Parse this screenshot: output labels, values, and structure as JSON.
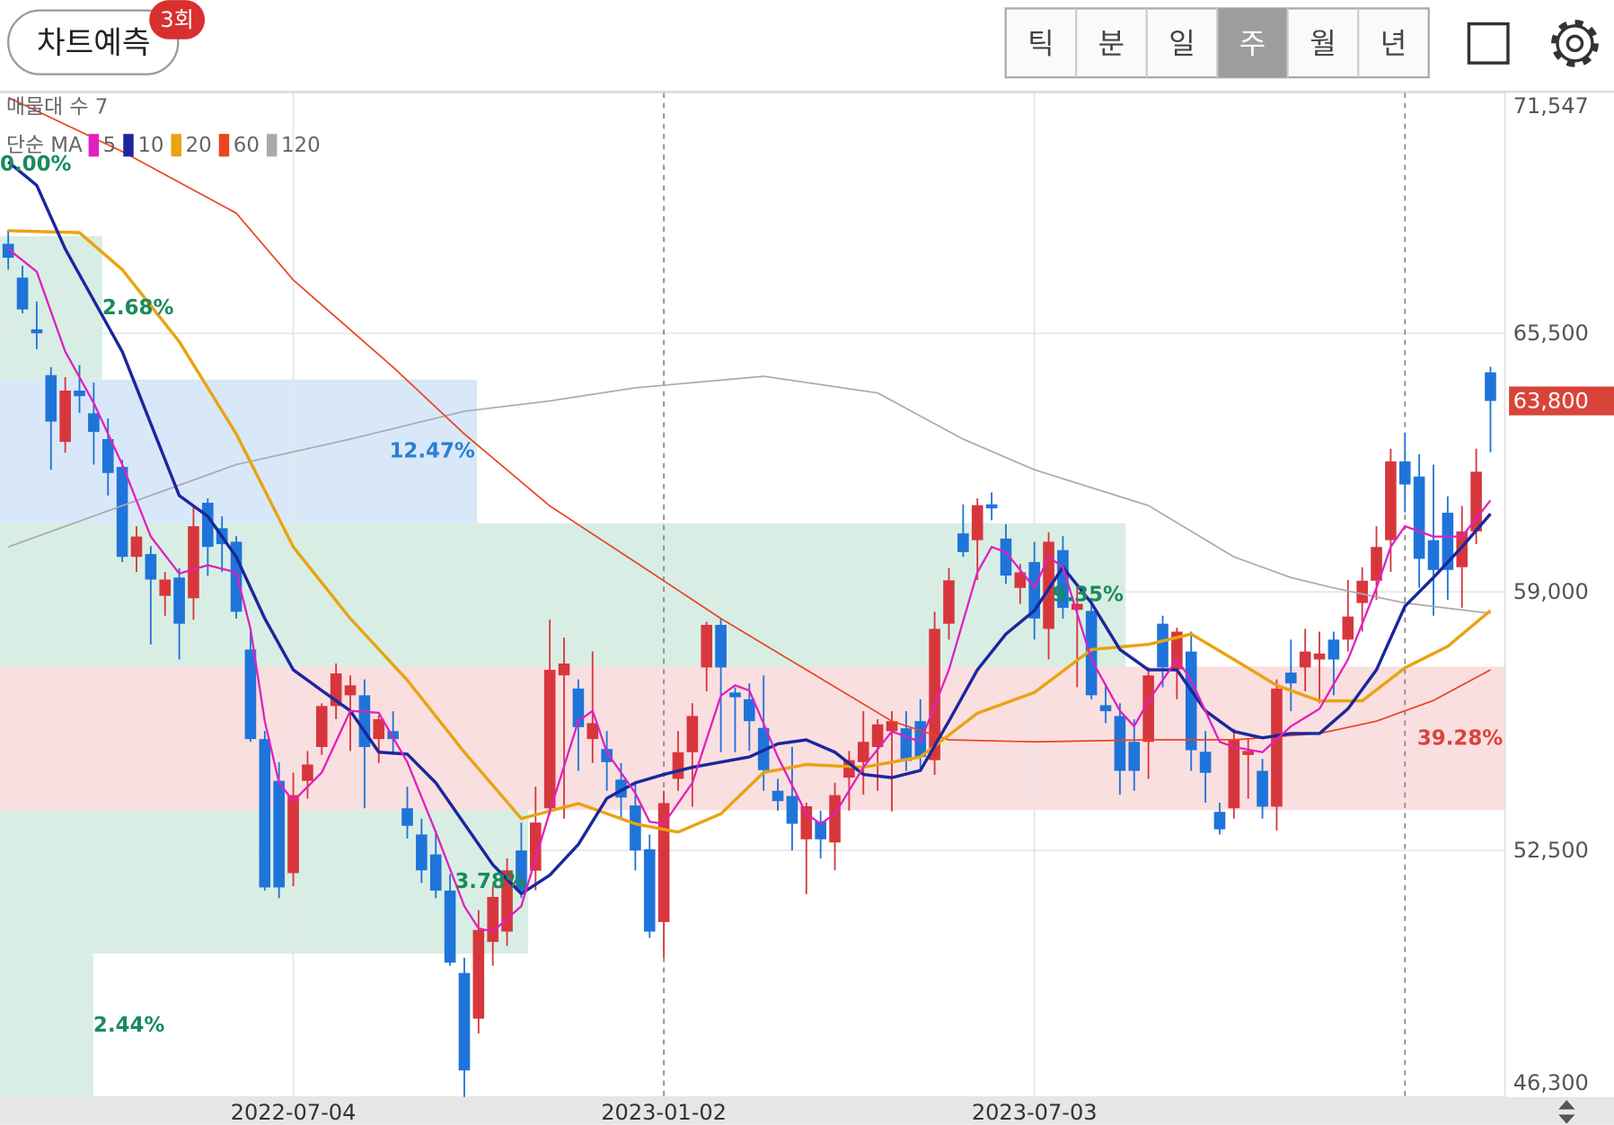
{
  "header": {
    "button": "차트예측",
    "badge": "3회",
    "tabs": [
      "틱",
      "분",
      "일",
      "주",
      "월",
      "년"
    ],
    "selected_tab": 3
  },
  "chart_data": {
    "type": "candlestick",
    "categories": [
      null,
      null,
      null,
      null,
      null,
      null,
      null,
      null,
      null,
      null,
      null,
      null,
      null,
      null,
      null,
      null,
      null,
      null,
      null,
      null,
      "2022-07-04",
      null,
      null,
      null,
      null,
      null,
      null,
      null,
      null,
      null,
      null,
      null,
      null,
      null,
      null,
      null,
      null,
      null,
      null,
      null,
      null,
      null,
      null,
      null,
      null,
      null,
      "2023-01-02",
      null,
      null,
      null,
      null,
      null,
      null,
      null,
      null,
      null,
      null,
      null,
      null,
      null,
      null,
      null,
      null,
      null,
      null,
      null,
      null,
      null,
      null,
      null,
      null,
      null,
      "2023-07-03",
      null,
      null,
      null,
      null,
      null,
      null,
      null,
      null,
      null,
      null,
      null,
      null,
      null,
      null,
      null,
      null,
      null,
      null,
      null,
      null,
      null,
      null,
      null,
      null,
      null,
      null,
      null,
      null,
      null,
      null,
      null,
      null
    ],
    "separators": [
      46,
      98
    ],
    "open": [
      67750,
      66900,
      65600,
      64450,
      62770,
      64060,
      63490,
      62840,
      62140,
      59880,
      59950,
      58900,
      59360,
      58840,
      61240,
      60600,
      60260,
      57550,
      55300,
      54250,
      51930,
      54250,
      55100,
      56130,
      56400,
      56400,
      55300,
      55500,
      53560,
      52900,
      52400,
      51490,
      49420,
      48270,
      50200,
      50460,
      52500,
      51990,
      53560,
      56900,
      56570,
      55300,
      55050,
      54280,
      53630,
      52530,
      50700,
      54300,
      54970,
      57100,
      58170,
      56470,
      56300,
      55580,
      54000,
      53870,
      52780,
      53230,
      52700,
      54330,
      54720,
      55100,
      55500,
      55570,
      55750,
      54770,
      58200,
      60470,
      60300,
      61200,
      60340,
      59100,
      59750,
      58070,
      60050,
      58550,
      58520,
      56150,
      55880,
      55230,
      55230,
      58200,
      57050,
      57500,
      54980,
      53470,
      53560,
      54900,
      54500,
      53600,
      56970,
      57100,
      57300,
      57800,
      57800,
      58720,
      59280,
      60300,
      62280,
      61900,
      60300,
      60990,
      59620,
      60520,
      64520
    ],
    "high": [
      68100,
      67200,
      66300,
      64650,
      64400,
      64700,
      64260,
      63360,
      62320,
      60650,
      60150,
      59500,
      59600,
      61160,
      61350,
      60900,
      60400,
      58070,
      55500,
      54720,
      54460,
      55000,
      56200,
      57200,
      56900,
      56800,
      55900,
      56000,
      54100,
      53300,
      53000,
      51900,
      49800,
      51000,
      51600,
      52300,
      53200,
      54100,
      58300,
      57850,
      56800,
      57500,
      55500,
      54700,
      54200,
      52900,
      54000,
      55500,
      56200,
      58250,
      58330,
      56600,
      56700,
      56900,
      54300,
      55100,
      53700,
      53500,
      54200,
      55000,
      56000,
      55800,
      56000,
      56000,
      56300,
      58500,
      59600,
      61200,
      61350,
      61500,
      60700,
      59700,
      60260,
      60500,
      60400,
      59200,
      58800,
      56700,
      56200,
      55800,
      57100,
      58400,
      58100,
      58000,
      55500,
      53700,
      55560,
      55300,
      54800,
      56800,
      57800,
      58070,
      58000,
      58000,
      59300,
      59620,
      60650,
      62600,
      63000,
      62460,
      62200,
      61400,
      61160,
      62600,
      64660
    ],
    "low": [
      67100,
      66000,
      65100,
      62070,
      62500,
      63500,
      62200,
      61420,
      59750,
      59500,
      57680,
      58400,
      57300,
      58300,
      59400,
      59500,
      58330,
      55230,
      51490,
      51300,
      51600,
      53800,
      54900,
      55800,
      55000,
      53560,
      54700,
      54900,
      52800,
      51680,
      51300,
      49600,
      46300,
      47900,
      49600,
      50100,
      51300,
      51500,
      53400,
      53300,
      54500,
      54700,
      54000,
      53300,
      52000,
      50300,
      49800,
      54000,
      53600,
      56500,
      54970,
      54970,
      55000,
      54000,
      53500,
      52500,
      51400,
      52300,
      52000,
      53500,
      53900,
      54000,
      53480,
      54500,
      54500,
      54400,
      57800,
      59880,
      59300,
      60800,
      59200,
      58700,
      57800,
      57300,
      58330,
      56600,
      56300,
      55700,
      53900,
      54000,
      54300,
      56600,
      56300,
      54500,
      53700,
      52900,
      53300,
      53800,
      53300,
      53000,
      56000,
      56500,
      56200,
      56400,
      57500,
      58000,
      58800,
      59500,
      61000,
      59100,
      58400,
      58800,
      58600,
      60200,
      62510
    ],
    "close": [
      67400,
      66100,
      65500,
      63280,
      64060,
      63920,
      63020,
      61990,
      59880,
      60390,
      59310,
      59310,
      58200,
      60650,
      60130,
      60200,
      58500,
      55300,
      51570,
      51570,
      53890,
      54660,
      56130,
      56950,
      56650,
      55100,
      55800,
      55300,
      53120,
      52000,
      51490,
      49680,
      46970,
      50500,
      51330,
      52000,
      51490,
      53200,
      57040,
      57200,
      55600,
      55700,
      54720,
      53830,
      52500,
      50460,
      53690,
      54970,
      55880,
      58170,
      57100,
      56350,
      55750,
      54520,
      53740,
      53170,
      53610,
      52780,
      53890,
      54770,
      55230,
      55670,
      55750,
      54750,
      54850,
      58070,
      59290,
      60000,
      61180,
      61100,
      59410,
      59490,
      58330,
      60260,
      58600,
      58700,
      56400,
      56000,
      54500,
      54500,
      56900,
      57100,
      58000,
      55020,
      54450,
      53030,
      55280,
      55000,
      53600,
      56570,
      56700,
      57500,
      57450,
      57300,
      58380,
      59280,
      60130,
      62280,
      61700,
      59830,
      59550,
      59550,
      60520,
      62020,
      63800
    ],
    "up_color": "#d8363d",
    "down_color": "#1f74d9",
    "legend_title": "단순 MA",
    "series": [
      {
        "name": "5",
        "color": "#e020c0",
        "width": 2,
        "x": [
          0,
          2,
          4,
          6,
          8,
          10,
          12,
          14,
          16,
          17,
          18,
          19,
          20,
          22,
          24,
          26,
          28,
          30,
          32,
          33,
          34,
          36,
          38,
          40,
          41,
          42,
          44,
          45,
          46,
          48,
          50,
          51,
          52,
          54,
          56,
          57,
          58,
          60,
          62,
          64,
          66,
          68,
          69,
          70,
          72,
          73,
          74,
          76,
          78,
          79,
          80,
          82,
          83,
          85,
          86,
          88,
          90,
          92,
          94,
          96,
          97,
          98,
          100,
          102,
          104
        ],
        "values": [
          67620,
          67050,
          65040,
          63750,
          62200,
          60390,
          59460,
          59670,
          59490,
          58070,
          55750,
          54200,
          53740,
          54460,
          56010,
          55960,
          54720,
          52960,
          51100,
          50540,
          50460,
          51100,
          53480,
          55750,
          56010,
          54970,
          53940,
          53220,
          53170,
          54200,
          56390,
          56650,
          56520,
          54850,
          53420,
          53170,
          53420,
          54590,
          55490,
          55230,
          57040,
          59490,
          60130,
          60000,
          59100,
          59880,
          59620,
          57300,
          56010,
          55620,
          56260,
          57300,
          56780,
          55230,
          55100,
          54970,
          55620,
          56060,
          57300,
          59100,
          60130,
          60650,
          60390,
          60390,
          61300
        ]
      },
      {
        "name": "10",
        "color": "#1a279e",
        "width": 3,
        "x": [
          0,
          2,
          4,
          6,
          8,
          10,
          12,
          14,
          16,
          18,
          20,
          22,
          24,
          26,
          28,
          30,
          32,
          34,
          36,
          38,
          40,
          42,
          44,
          46,
          48,
          50,
          52,
          54,
          56,
          58,
          60,
          62,
          64,
          66,
          68,
          70,
          72,
          74,
          76,
          78,
          80,
          82,
          84,
          86,
          88,
          90,
          92,
          94,
          96,
          98,
          100,
          102,
          104
        ],
        "values": [
          69810,
          69220,
          67620,
          66330,
          65040,
          63230,
          61420,
          60900,
          59880,
          58330,
          57040,
          56520,
          56010,
          54970,
          54920,
          54200,
          53170,
          52140,
          51410,
          51880,
          52650,
          53810,
          54200,
          54410,
          54590,
          54720,
          54850,
          55180,
          55280,
          54970,
          54410,
          54330,
          54510,
          55750,
          57040,
          57940,
          58530,
          59620,
          58720,
          57550,
          57040,
          57040,
          56010,
          55490,
          55330,
          55440,
          55440,
          56060,
          57040,
          58640,
          59360,
          60130,
          60960
        ]
      },
      {
        "name": "20",
        "color": "#e9a313",
        "width": 3,
        "x": [
          0,
          5,
          8,
          12,
          16,
          20,
          24,
          28,
          32,
          36,
          40,
          44,
          47,
          50,
          53,
          56,
          60,
          64,
          68,
          72,
          76,
          80,
          83,
          86,
          89,
          92,
          95,
          98,
          101,
          104
        ],
        "values": [
          68080,
          68030,
          67100,
          65290,
          62970,
          60130,
          58330,
          56780,
          54970,
          53300,
          53680,
          53170,
          52960,
          53420,
          54460,
          54660,
          54590,
          54850,
          55950,
          56470,
          57550,
          57680,
          57940,
          57300,
          56650,
          56260,
          56260,
          57090,
          57630,
          58530
        ]
      },
      {
        "name": "60",
        "color": "#e84520",
        "width": 1.5,
        "x": [
          0,
          8,
          16,
          20,
          27,
          32,
          38,
          44,
          50,
          56,
          62,
          66,
          72,
          80,
          86,
          92,
          96,
          100,
          104
        ],
        "values": [
          71430,
          70070,
          68520,
          66840,
          64650,
          62970,
          61160,
          59750,
          58330,
          57040,
          55750,
          55280,
          55230,
          55280,
          55280,
          55440,
          55750,
          56270,
          57040
        ]
      },
      {
        "name": "120",
        "color": "#aaaaaa",
        "width": 1.5,
        "x": [
          0,
          16,
          24,
          32,
          38,
          44,
          53,
          61,
          67,
          72,
          80,
          86,
          90,
          93,
          98,
          104
        ],
        "values": [
          60130,
          62200,
          62840,
          63540,
          63800,
          64130,
          64420,
          64000,
          62840,
          62070,
          61170,
          59880,
          59360,
          59100,
          58720,
          58460
        ]
      }
    ],
    "profile": {
      "title": "매물대 수 7",
      "bins": [
        46300,
        49907,
        53514,
        57121,
        60728,
        64335,
        67942,
        71547
      ],
      "volumes": [
        6.2,
        35.1,
        100,
        74.8,
        31.7,
        6.8,
        0
      ],
      "values": [
        2.44,
        3.78,
        39.28,
        9.35,
        12.47,
        2.68,
        0
      ],
      "value_labels": [
        "2.44%",
        "3.78%",
        "39.28%",
        "9.35%",
        "12.47%",
        "2.68%",
        "0.00%"
      ],
      "fills": [
        "#d8eee4",
        "#d8eee4",
        "#fadfe0",
        "#d8eee4",
        "#d9e8f8",
        "#d8eee4",
        "#d8eee4"
      ],
      "label_colors": [
        "#1b8a5c",
        "#1b8a5c",
        "#d9443a",
        "#1b8a5c",
        "#2a7fd0",
        "#1b8a5c",
        "#1b8a5c"
      ]
    },
    "last_price": {
      "value": 63800,
      "label": "63,800"
    },
    "last_price_color": "#d9443a",
    "ylim": [
      46300,
      71547
    ],
    "yticks": [
      {
        "value": 46300,
        "label": "46,300"
      },
      {
        "value": 52500,
        "label": "52,500"
      },
      {
        "value": 59000,
        "label": "59,000"
      },
      {
        "value": 65500,
        "label": "65,500"
      },
      {
        "value": 71547,
        "label": "71,547"
      }
    ],
    "grid": true
  }
}
